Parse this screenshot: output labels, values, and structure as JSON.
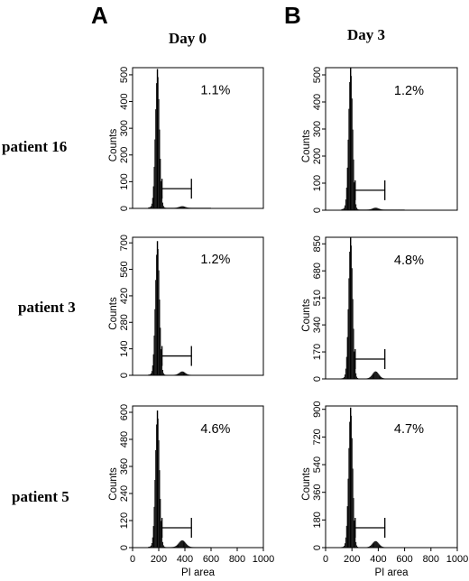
{
  "panel_labels": [
    "A",
    "B"
  ],
  "column_titles": [
    "Day 0",
    "Day 3"
  ],
  "row_labels": [
    "patient 16",
    "patient 3",
    "patient 5"
  ],
  "chart_data": [
    {
      "type": "histogram",
      "row": "patient 16",
      "column": "Day 0",
      "xlabel": "",
      "ylabel": "Counts",
      "xlim": [
        0,
        1000
      ],
      "ylim": [
        0,
        520
      ],
      "yticks": [
        0,
        100,
        200,
        300,
        400,
        500
      ],
      "xticks": [],
      "annotation": "1.1%",
      "gate": [
        225,
        450
      ],
      "peaks": [
        {
          "center": 190,
          "height": 515,
          "width": 16
        },
        {
          "center": 380,
          "height": 6,
          "width": 22
        }
      ]
    },
    {
      "type": "histogram",
      "row": "patient 16",
      "column": "Day 3",
      "xlabel": "",
      "ylabel": "Counts",
      "xlim": [
        0,
        1000
      ],
      "ylim": [
        0,
        520
      ],
      "yticks": [
        0,
        100,
        200,
        300,
        400,
        500
      ],
      "xticks": [],
      "annotation": "1.2%",
      "gate": [
        225,
        450
      ],
      "peaks": [
        {
          "center": 190,
          "height": 520,
          "width": 16
        },
        {
          "center": 380,
          "height": 7,
          "width": 22
        }
      ]
    },
    {
      "type": "histogram",
      "row": "patient 3",
      "column": "Day 0",
      "xlabel": "",
      "ylabel": "Counts",
      "xlim": [
        0,
        1000
      ],
      "ylim": [
        0,
        720
      ],
      "yticks": [
        0,
        140,
        280,
        420,
        560,
        700
      ],
      "xticks": [],
      "annotation": "1.2%",
      "gate": [
        225,
        450
      ],
      "peaks": [
        {
          "center": 190,
          "height": 700,
          "width": 16
        },
        {
          "center": 380,
          "height": 18,
          "width": 22
        }
      ]
    },
    {
      "type": "histogram",
      "row": "patient 3",
      "column": "Day 3",
      "xlabel": "",
      "ylabel": "Counts",
      "xlim": [
        0,
        1000
      ],
      "ylim": [
        0,
        880
      ],
      "yticks": [
        0,
        170,
        340,
        510,
        680,
        850
      ],
      "xticks": [],
      "annotation": "4.8%",
      "gate": [
        225,
        450
      ],
      "peaks": [
        {
          "center": 190,
          "height": 880,
          "width": 16
        },
        {
          "center": 380,
          "height": 45,
          "width": 24
        }
      ]
    },
    {
      "type": "histogram",
      "row": "patient 5",
      "column": "Day 0",
      "xlabel": "PI area",
      "ylabel": "Counts",
      "xlim": [
        0,
        1000
      ],
      "ylim": [
        0,
        620
      ],
      "yticks": [
        0,
        120,
        240,
        360,
        480,
        600
      ],
      "xticks": [
        0,
        200,
        400,
        600,
        800,
        1000
      ],
      "annotation": "4.6%",
      "gate": [
        225,
        450
      ],
      "peaks": [
        {
          "center": 190,
          "height": 600,
          "width": 16
        },
        {
          "center": 380,
          "height": 30,
          "width": 26
        }
      ]
    },
    {
      "type": "histogram",
      "row": "patient 5",
      "column": "Day 3",
      "xlabel": "PI area",
      "ylabel": "Counts",
      "xlim": [
        0,
        1000
      ],
      "ylim": [
        0,
        910
      ],
      "yticks": [
        0,
        180,
        360,
        540,
        720,
        900
      ],
      "xticks": [
        0,
        200,
        400,
        600,
        800,
        1000
      ],
      "annotation": "4.7%",
      "gate": [
        225,
        450
      ],
      "peaks": [
        {
          "center": 190,
          "height": 900,
          "width": 16
        },
        {
          "center": 380,
          "height": 40,
          "width": 24
        }
      ]
    }
  ]
}
